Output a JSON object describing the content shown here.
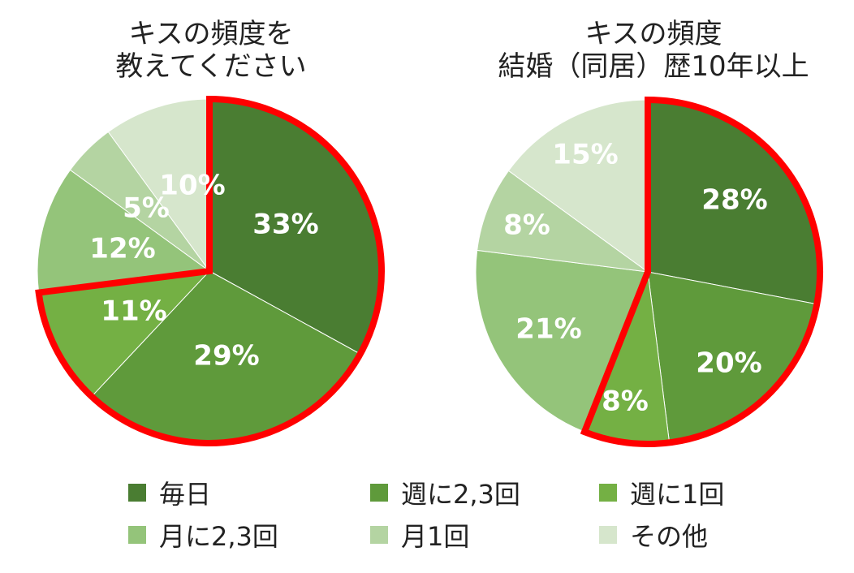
{
  "charts": [
    {
      "title_lines": [
        "キスの頻度を",
        "教えてください"
      ],
      "chart_data": {
        "type": "pie",
        "categories": [
          "毎日",
          "週に2,3回",
          "週に1回",
          "月に2,3回",
          "月1回",
          "その他"
        ],
        "values": [
          33,
          29,
          11,
          12,
          5,
          10
        ],
        "labels": [
          "33%",
          "29%",
          "11%",
          "12%",
          "5%",
          "10%"
        ],
        "highlighted_categories": [
          "毎日",
          "週に2,3回",
          "週に1回"
        ]
      }
    },
    {
      "title_lines": [
        "キスの頻度",
        "結婚（同居）歴10年以上"
      ],
      "chart_data": {
        "type": "pie",
        "categories": [
          "毎日",
          "週に2,3回",
          "週に1回",
          "月に2,3回",
          "月1回",
          "その他"
        ],
        "values": [
          28,
          20,
          8,
          21,
          8,
          15
        ],
        "labels": [
          "28%",
          "20%",
          "8%",
          "21%",
          "8%",
          "15%"
        ],
        "highlighted_categories": [
          "毎日",
          "週に2,3回",
          "週に1回"
        ]
      }
    }
  ],
  "legend": [
    {
      "label": "毎日",
      "color": "#4a7d32"
    },
    {
      "label": "週に2,3回",
      "color": "#5f9a3b"
    },
    {
      "label": "週に1回",
      "color": "#74b044"
    },
    {
      "label": "月に2,3回",
      "color": "#94c47a"
    },
    {
      "label": "月1回",
      "color": "#b4d4a2"
    },
    {
      "label": "その他",
      "color": "#d6e6cc"
    }
  ],
  "colors": {
    "highlight_outline": "#ff0000",
    "label_text": "#ffffff"
  }
}
